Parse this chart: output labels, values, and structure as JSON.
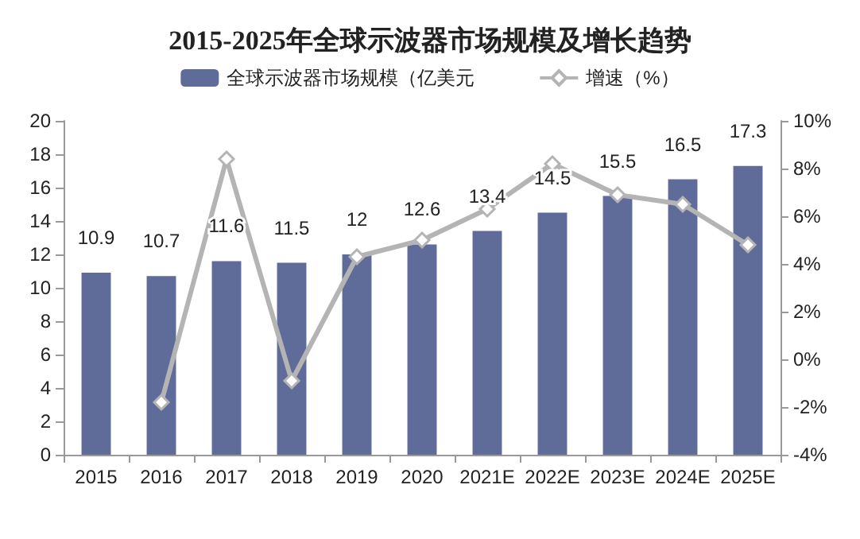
{
  "chart_data": {
    "type": "bar",
    "title": "2015-2025年全球示波器市场规模及增长趋势",
    "categories": [
      "2015",
      "2016",
      "2017",
      "2018",
      "2019",
      "2020",
      "2021E",
      "2022E",
      "2023E",
      "2024E",
      "2025E"
    ],
    "series": [
      {
        "name": "全球示波器市场规模（亿美元",
        "color": "#5f6b98",
        "values": [
          10.9,
          10.7,
          11.6,
          11.5,
          12,
          12.6,
          13.4,
          14.5,
          15.5,
          16.5,
          17.3
        ],
        "value_labels": [
          "10.9",
          "10.7",
          "11.6",
          "11.5",
          "12",
          "12.6",
          "13.4",
          "14.5",
          "15.5",
          "16.5",
          "17.3"
        ]
      },
      {
        "name": "增速（%）",
        "type": "line",
        "axis": "y2",
        "color": "#b4b4b4",
        "marker": "diamond",
        "values": [
          null,
          -1.8,
          8.4,
          -0.9,
          4.3,
          5.0,
          6.3,
          8.2,
          6.9,
          6.5,
          4.8
        ]
      }
    ],
    "ylim": [
      0,
      20
    ],
    "yticks": [
      0,
      2,
      4,
      6,
      8,
      10,
      12,
      14,
      16,
      18,
      20
    ],
    "y2lim": [
      -4,
      10
    ],
    "y2ticks": [
      {
        "value": -4,
        "label": "-4%"
      },
      {
        "value": -2,
        "label": "-2%"
      },
      {
        "value": 0,
        "label": "0%"
      },
      {
        "value": 2,
        "label": "2%"
      },
      {
        "value": 4,
        "label": "4%"
      },
      {
        "value": 6,
        "label": "6%"
      },
      {
        "value": 8,
        "label": "8%"
      },
      {
        "value": 10,
        "label": "10%"
      }
    ],
    "legend": "top",
    "grid": false
  }
}
